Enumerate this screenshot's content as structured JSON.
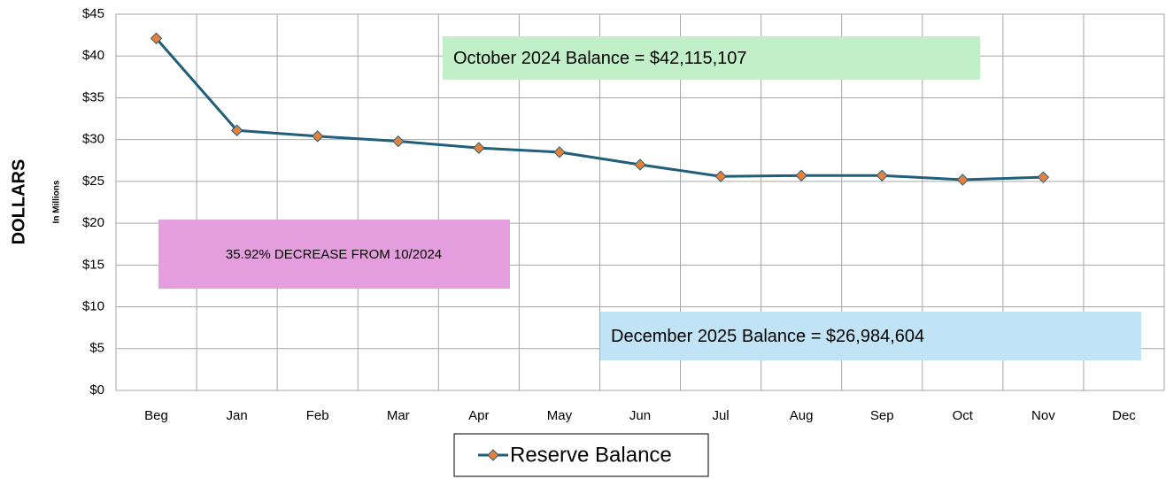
{
  "chart_data": {
    "type": "line",
    "y_label": "DOLLARS",
    "y_sublabel": "In Millions",
    "categories": [
      "Beg",
      "Jan",
      "Feb",
      "Mar",
      "Apr",
      "May",
      "Jun",
      "Jul",
      "Aug",
      "Sep",
      "Oct",
      "Nov",
      "Dec"
    ],
    "series": [
      {
        "name": "Reserve Balance",
        "color": "#1f5f7a",
        "marker_color": "#e8803a",
        "values": [
          42.1,
          31.1,
          30.4,
          29.8,
          29.0,
          28.5,
          27.0,
          25.6,
          25.7,
          25.7,
          25.2,
          25.5,
          null
        ]
      }
    ],
    "ylim": [
      0,
      45
    ],
    "yticks": [
      {
        "value": 0,
        "label": "$0"
      },
      {
        "value": 5,
        "label": "$5"
      },
      {
        "value": 10,
        "label": "$10"
      },
      {
        "value": 15,
        "label": "$15"
      },
      {
        "value": 20,
        "label": "$20"
      },
      {
        "value": 25,
        "label": "$25"
      },
      {
        "value": 30,
        "label": "$30"
      },
      {
        "value": 35,
        "label": "$35"
      },
      {
        "value": 40,
        "label": "$40"
      },
      {
        "value": 45,
        "label": "$45"
      }
    ],
    "grid": true,
    "legend": "bottom",
    "annotations": [
      {
        "text": "October 2024 Balance = $42,115,107",
        "color": "#c1f0c8"
      },
      {
        "text": "35.92% DECREASE FROM 10/2024",
        "color": "#e49edd"
      },
      {
        "text": "December 2025 Balance = $26,984,604",
        "color": "#c0e4f5"
      }
    ]
  }
}
